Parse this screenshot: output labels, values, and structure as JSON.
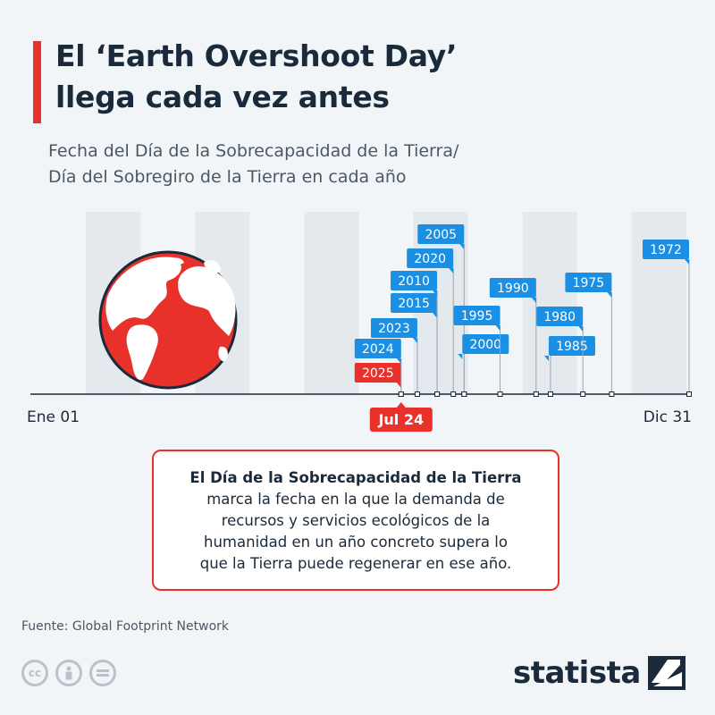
{
  "title_lines": [
    "El ‘Earth Overshoot Day’",
    "llega cada vez antes"
  ],
  "subtitle_lines": [
    "Fecha del Día de la Sobrecapacidad de la Tierra/",
    "Día del Sobregiro de la Tierra en cada año"
  ],
  "colors": {
    "accent": "#e8312a",
    "label_blue": "#1a8fe3",
    "highlight_red": "#e8312a",
    "axis": "#1a2a3a",
    "month_band": "#e4e9ee",
    "dark": "#1a2a3a"
  },
  "chart_data": {
    "type": "timeline",
    "axis_start_label": "Ene 01",
    "axis_end_label": "Dic 31",
    "highlight_label": "Jul 24",
    "highlight_day_of_year": 205,
    "days_in_year": 365,
    "points": [
      {
        "year": "2025",
        "day_of_year": 205,
        "highlight": true
      },
      {
        "year": "2024",
        "day_of_year": 205
      },
      {
        "year": "2023",
        "day_of_year": 214
      },
      {
        "year": "2015",
        "day_of_year": 225
      },
      {
        "year": "2010",
        "day_of_year": 225
      },
      {
        "year": "2020",
        "day_of_year": 234
      },
      {
        "year": "2005",
        "day_of_year": 240
      },
      {
        "year": "2000",
        "day_of_year": 240
      },
      {
        "year": "1995",
        "day_of_year": 260
      },
      {
        "year": "1990",
        "day_of_year": 280
      },
      {
        "year": "1985",
        "day_of_year": 288
      },
      {
        "year": "1980",
        "day_of_year": 306
      },
      {
        "year": "1975",
        "day_of_year": 322
      },
      {
        "year": "1972",
        "day_of_year": 365
      }
    ]
  },
  "callout": {
    "bold_line": "El Día de la Sobrecapacidad de la Tierra",
    "lines": [
      "marca la fecha en la que la demanda de",
      "recursos y servicios  ecológicos de la",
      "humanidad en un año concreto supera lo",
      "que la Tierra puede regenerar en ese año."
    ]
  },
  "source": "Fuente: Global Footprint Network",
  "license_icons": [
    "cc-icon",
    "person-icon",
    "equals-icon"
  ],
  "logo_text": "statista"
}
